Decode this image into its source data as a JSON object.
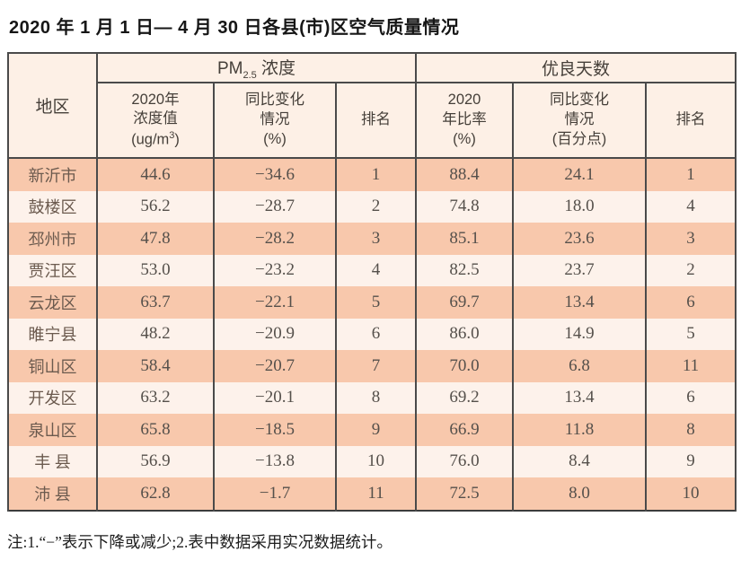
{
  "page": {
    "title": "2020 年 1 月 1 日— 4 月 30 日各县(市)区空气质量情况",
    "note": "注:1.“−”表示下降或减少;2.表中数据采用实况数据统计。"
  },
  "colors": {
    "row_shade": "#f8c8ac",
    "row_light": "#fdf2eb",
    "header_bg": "#fdf0e6",
    "border": "#4a4a4a",
    "text": "#55504b"
  },
  "table": {
    "header": {
      "region": "地区",
      "pm_group": {
        "prefix": "PM",
        "subscript": "2.5",
        "suffix": " 浓度"
      },
      "good_group": "优良天数",
      "pm_value": {
        "line1": "2020年",
        "line2": "浓度值",
        "unit_prefix": "(ug/m",
        "unit_sup": "3",
        "unit_suffix": ")"
      },
      "pm_change": {
        "line1": "同比变化",
        "line2": "情况",
        "line3": "(%)"
      },
      "pm_rank": "排名",
      "good_value": {
        "line1": "2020",
        "line2": "年比率",
        "line3": "(%)"
      },
      "good_change": {
        "line1": "同比变化",
        "line2": "情况",
        "line3": "(百分点)"
      },
      "good_rank": "排名"
    },
    "rows": [
      {
        "region": "新沂市",
        "pm_value": "44.6",
        "pm_change": "−34.6",
        "pm_rank": "1",
        "good_value": "88.4",
        "good_change": "24.1",
        "good_rank": "1"
      },
      {
        "region": "鼓楼区",
        "pm_value": "56.2",
        "pm_change": "−28.7",
        "pm_rank": "2",
        "good_value": "74.8",
        "good_change": "18.0",
        "good_rank": "4"
      },
      {
        "region": "邳州市",
        "pm_value": "47.8",
        "pm_change": "−28.2",
        "pm_rank": "3",
        "good_value": "85.1",
        "good_change": "23.6",
        "good_rank": "3"
      },
      {
        "region": "贾汪区",
        "pm_value": "53.0",
        "pm_change": "−23.2",
        "pm_rank": "4",
        "good_value": "82.5",
        "good_change": "23.7",
        "good_rank": "2"
      },
      {
        "region": "云龙区",
        "pm_value": "63.7",
        "pm_change": "−22.1",
        "pm_rank": "5",
        "good_value": "69.7",
        "good_change": "13.4",
        "good_rank": "6"
      },
      {
        "region": "睢宁县",
        "pm_value": "48.2",
        "pm_change": "−20.9",
        "pm_rank": "6",
        "good_value": "86.0",
        "good_change": "14.9",
        "good_rank": "5"
      },
      {
        "region": "铜山区",
        "pm_value": "58.4",
        "pm_change": "−20.7",
        "pm_rank": "7",
        "good_value": "70.0",
        "good_change": "6.8",
        "good_rank": "11"
      },
      {
        "region": "开发区",
        "pm_value": "63.2",
        "pm_change": "−20.1",
        "pm_rank": "8",
        "good_value": "69.2",
        "good_change": "13.4",
        "good_rank": "6"
      },
      {
        "region": "泉山区",
        "pm_value": "65.8",
        "pm_change": "−18.5",
        "pm_rank": "9",
        "good_value": "66.9",
        "good_change": "11.8",
        "good_rank": "8"
      },
      {
        "region": "丰 县",
        "pm_value": "56.9",
        "pm_change": "−13.8",
        "pm_rank": "10",
        "good_value": "76.0",
        "good_change": "8.4",
        "good_rank": "9"
      },
      {
        "region": "沛 县",
        "pm_value": "62.8",
        "pm_change": "−1.7",
        "pm_rank": "11",
        "good_value": "72.5",
        "good_change": "8.0",
        "good_rank": "10"
      }
    ]
  }
}
